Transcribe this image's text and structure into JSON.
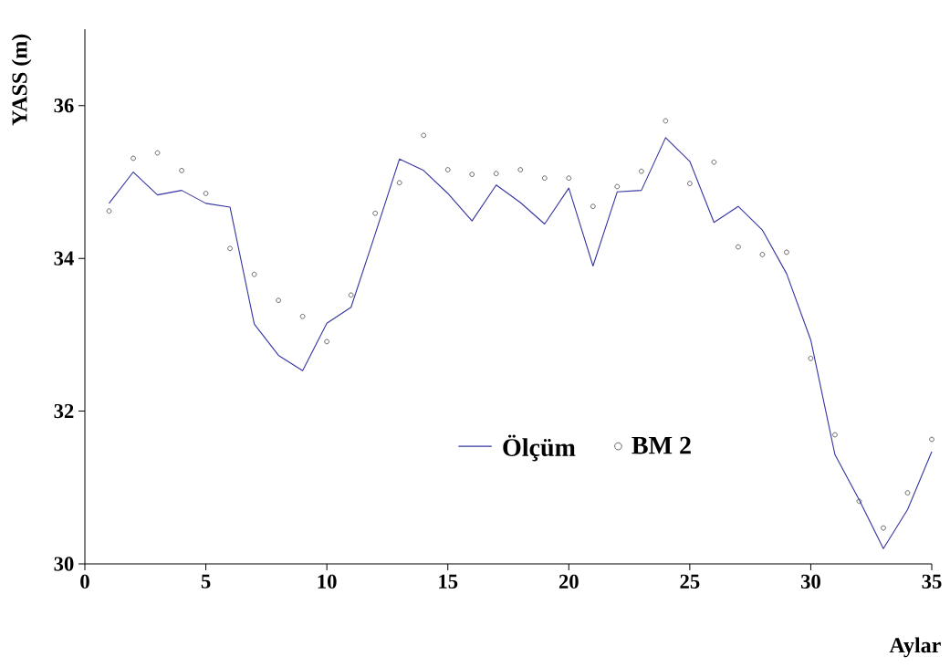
{
  "chart_data": {
    "type": "line",
    "xlabel": "Aylar",
    "ylabel": "YASS (m)",
    "x": [
      1,
      2,
      3,
      4,
      5,
      6,
      7,
      8,
      9,
      10,
      11,
      12,
      13,
      14,
      15,
      16,
      17,
      18,
      19,
      20,
      21,
      22,
      23,
      24,
      25,
      26,
      27,
      28,
      29,
      30,
      31,
      32,
      33,
      34,
      35
    ],
    "series": [
      {
        "name": "Ölçüm",
        "color": "#3535a0",
        "marker": "none",
        "line_style": "solid",
        "values": [
          34.72,
          35.13,
          34.83,
          34.89,
          34.72,
          34.67,
          33.14,
          32.73,
          32.53,
          33.15,
          33.36,
          34.32,
          35.3,
          35.15,
          34.85,
          34.49,
          34.96,
          34.73,
          34.45,
          34.92,
          33.9,
          34.87,
          34.89,
          35.58,
          35.27,
          34.47,
          34.68,
          34.37,
          33.8,
          32.93,
          31.43,
          30.84,
          30.2,
          30.71,
          31.47
        ]
      },
      {
        "name": "BM 2",
        "type": "scatter",
        "color": "#555555",
        "marker": "circle",
        "values": [
          34.62,
          35.31,
          35.38,
          35.15,
          34.85,
          34.13,
          33.79,
          33.45,
          33.24,
          32.91,
          33.52,
          34.59,
          34.99,
          35.61,
          35.16,
          35.1,
          35.11,
          35.16,
          35.05,
          35.05,
          34.68,
          34.94,
          35.14,
          35.8,
          34.98,
          35.26,
          34.15,
          34.05,
          34.08,
          32.69,
          31.69,
          30.82,
          30.47,
          30.93,
          31.63
        ]
      }
    ],
    "xlim": [
      0,
      35
    ],
    "ylim": [
      30,
      37
    ],
    "xticks": [
      0,
      5,
      10,
      15,
      20,
      25,
      30,
      35
    ],
    "yticks": [
      30,
      32,
      34,
      36
    ],
    "grid": false,
    "legend": "bottom"
  }
}
